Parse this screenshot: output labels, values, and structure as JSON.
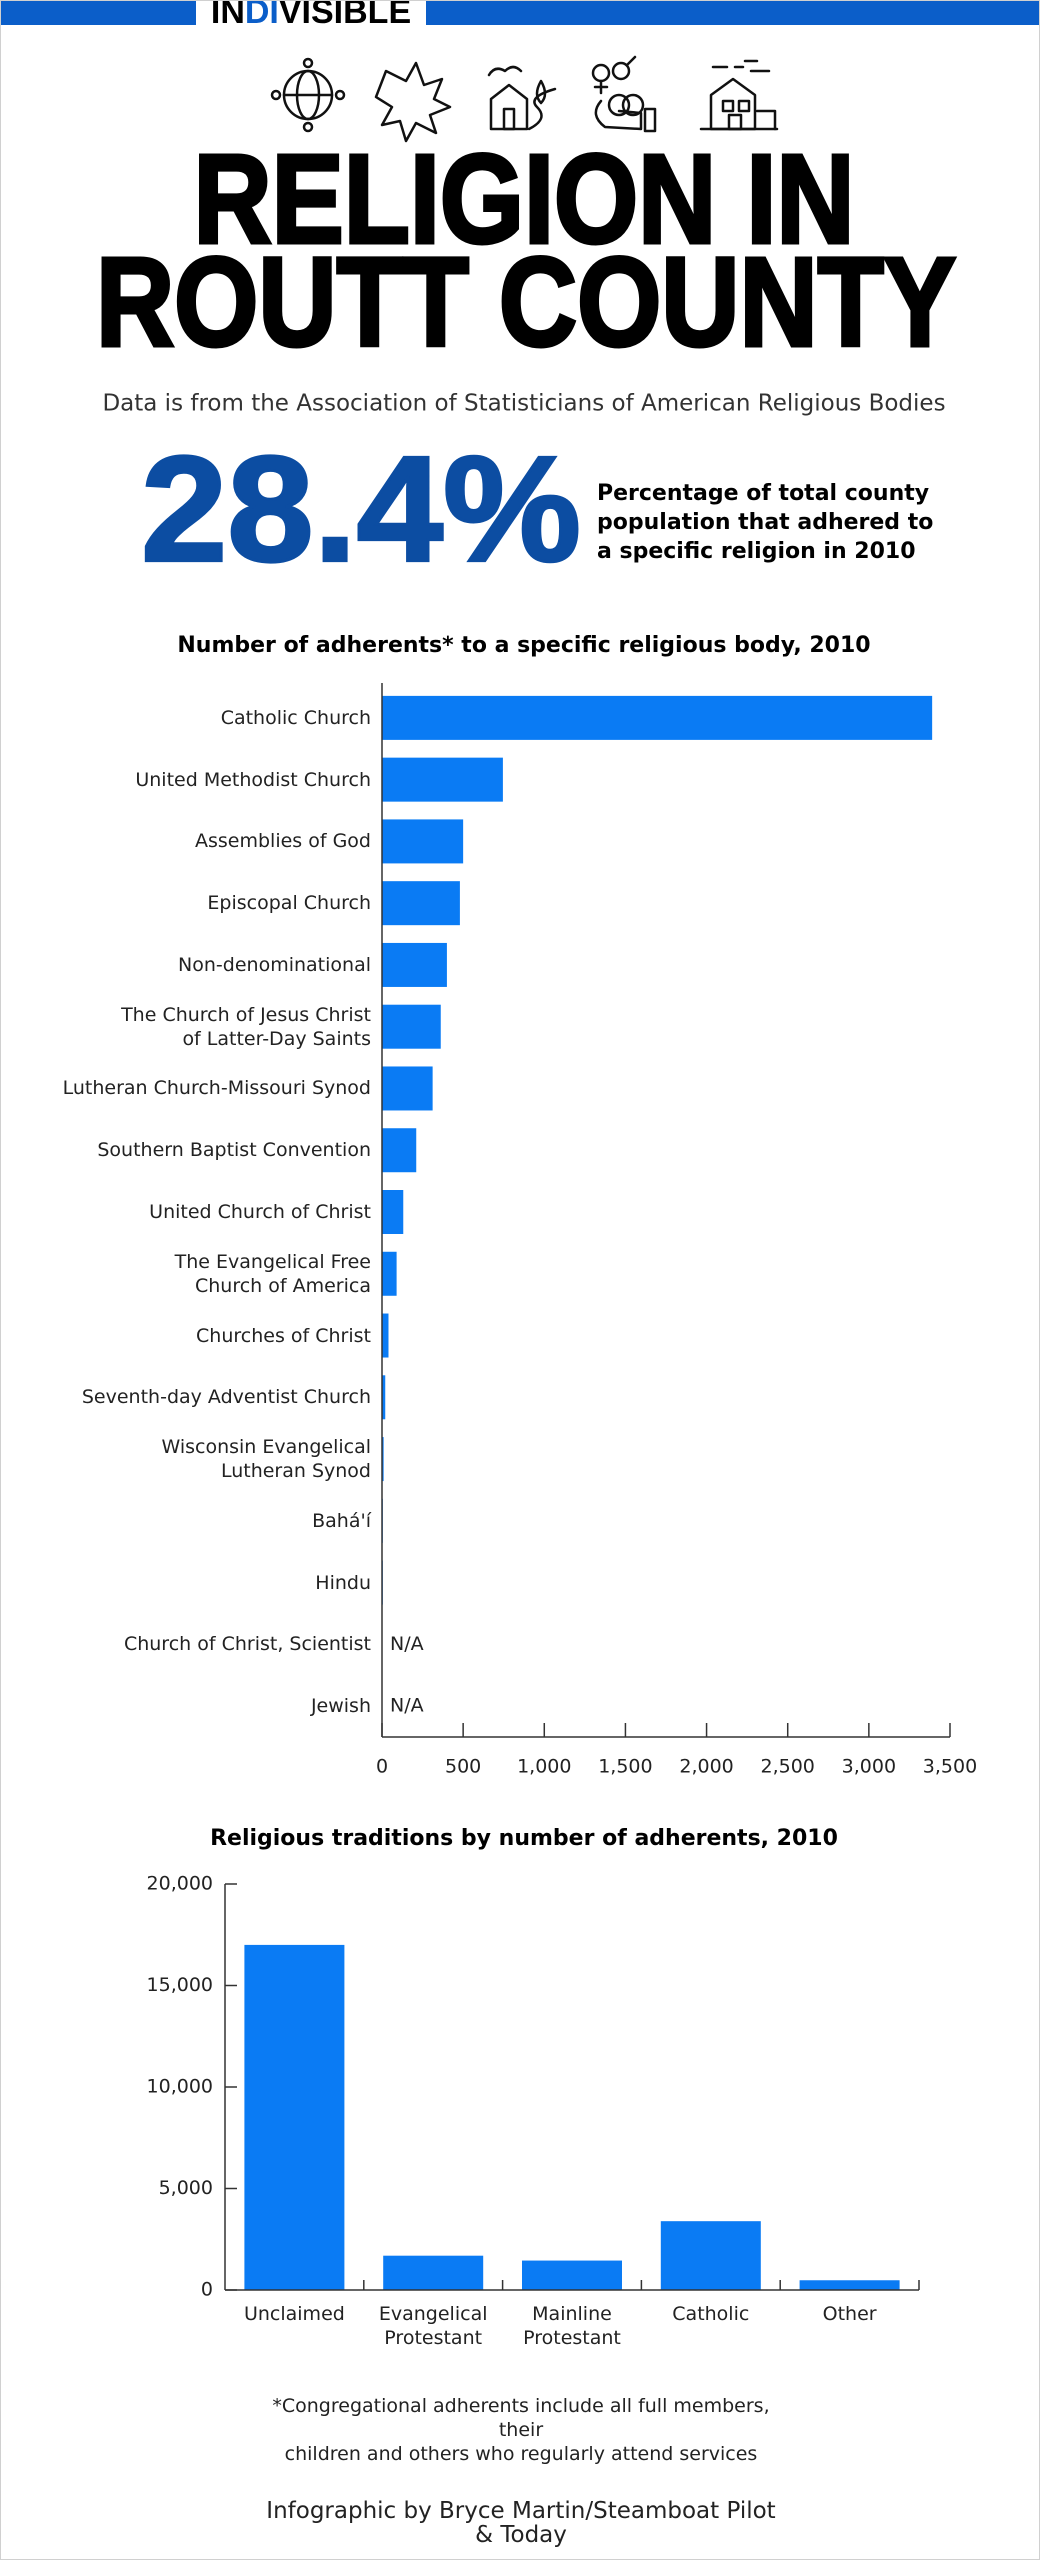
{
  "header": {
    "logo": [
      "IN",
      "DI",
      "VISIBLE"
    ]
  },
  "title": [
    "RELIGION IN",
    "ROUTT COUNTY"
  ],
  "subtitle": "Data is from the Association of Statisticians of American Religious Bodies",
  "highlight": {
    "value": "28.4%",
    "text": [
      "Percentage of total county",
      "population that adhered to",
      "a specific religion in 2010"
    ]
  },
  "chart_data": [
    {
      "type": "bar",
      "orientation": "horizontal",
      "title": "Number of adherents* to a specific religious body, 2010",
      "categories": [
        "Catholic Church",
        "United Methodist Church",
        "Assemblies of God",
        "Episcopal Church",
        "Non-denominational",
        "The Church of Jesus Christ\nof Latter-Day Saints",
        "Lutheran Church-Missouri Synod",
        "Southern Baptist Convention",
        "United Church of Christ",
        "The Evangelical Free\nChurch of America",
        "Churches of Christ",
        "Seventh-day Adventist Church",
        "Wisconsin Evangelical\nLutheran Synod",
        "Bahá'í",
        "Hindu",
        "Church of Christ, Scientist",
        "Jewish"
      ],
      "values": [
        3390,
        745,
        500,
        480,
        400,
        362,
        312,
        211,
        131,
        90,
        40,
        20,
        10,
        5,
        5,
        null,
        null
      ],
      "value_labels": [
        null,
        null,
        null,
        null,
        null,
        null,
        null,
        null,
        null,
        null,
        null,
        null,
        null,
        null,
        null,
        "N/A",
        "N/A"
      ],
      "color": "#0a7bf4",
      "xlim": [
        0,
        3500
      ],
      "xticks": [
        0,
        500,
        {
          "value": 1000,
          "label": "1,000"
        },
        {
          "value": 1500,
          "label": "1,500"
        },
        {
          "value": 2000,
          "label": "2,000"
        },
        {
          "value": 2500,
          "label": "2,500"
        },
        {
          "value": 3000,
          "label": "3,000"
        },
        {
          "value": 3500,
          "label": "3,500"
        }
      ]
    },
    {
      "type": "bar",
      "orientation": "vertical",
      "title": "Religious traditions by number of adherents, 2010",
      "categories": [
        "Unclaimed",
        "Evangelical\nProtestant",
        "Mainline\nProtestant",
        "Catholic",
        "Other"
      ],
      "values": [
        17000,
        1690,
        1450,
        3390,
        480
      ],
      "color": "#0a7bf4",
      "ylim": [
        0,
        20000
      ],
      "yticks": [
        0,
        {
          "value": 5000,
          "label": "5,000"
        },
        {
          "value": 10000,
          "label": "10,000"
        },
        {
          "value": 15000,
          "label": "15,000"
        },
        {
          "value": 20000,
          "label": "20,000"
        }
      ]
    }
  ],
  "footnote": "*Congregational adherents include all full members, their\nchildren and others who regularly attend services",
  "credit": "Infographic by Bryce Martin/Steamboat Pilot & Today"
}
